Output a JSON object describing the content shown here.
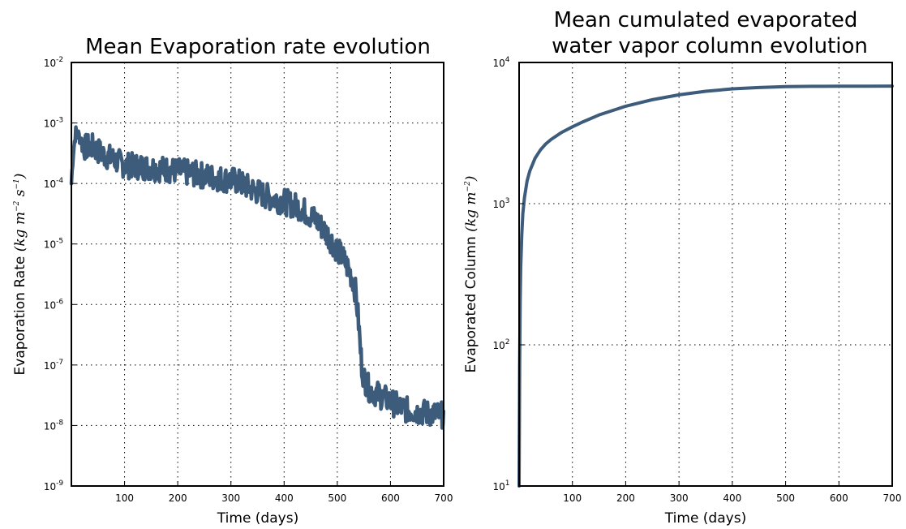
{
  "chart_data": [
    {
      "type": "line",
      "title": "Mean Evaporation rate evolution",
      "xlabel": "Time (days)",
      "ylabel": "Evaporation Rate",
      "ylabel_unit": "kg m-2 s-1",
      "xlim": [
        0,
        700
      ],
      "ylim": [
        1e-09,
        0.01
      ],
      "yscale": "log",
      "grid": true,
      "color": "#3d5c7c",
      "x_ticks": [
        "100",
        "200",
        "300",
        "400",
        "500",
        "600",
        "700"
      ],
      "y_ticks": [
        {
          "base": "10",
          "exp": "-9"
        },
        {
          "base": "10",
          "exp": "-8"
        },
        {
          "base": "10",
          "exp": "-7"
        },
        {
          "base": "10",
          "exp": "-6"
        },
        {
          "base": "10",
          "exp": "-5"
        },
        {
          "base": "10",
          "exp": "-4"
        },
        {
          "base": "10",
          "exp": "-3"
        },
        {
          "base": "10",
          "exp": "-2"
        }
      ],
      "series": [
        {
          "x": [
            0,
            3,
            8,
            15,
            25,
            40,
            60,
            80,
            100,
            130,
            160,
            200,
            240,
            280,
            310,
            340,
            370,
            400,
            430,
            460,
            480,
            500,
            510,
            520,
            530,
            535,
            540,
            543,
            546,
            550,
            555,
            560,
            570,
            590,
            610,
            630,
            650,
            670,
            690,
            700
          ],
          "y": [
            0.0001,
            0.0003,
            0.0007,
            0.0006,
            0.0004,
            0.0004,
            0.0003,
            0.00025,
            0.0002,
            0.00019,
            0.00018,
            0.00016,
            0.00014,
            0.00012,
            0.00011,
            8e-05,
            6e-05,
            5e-05,
            4e-05,
            2.5e-05,
            1.5e-05,
            8e-06,
            6e-06,
            4e-06,
            2.5e-06,
            1.5e-06,
            5e-07,
            2e-07,
            1e-07,
            6e-08,
            5e-08,
            4e-08,
            3.5e-08,
            2.8e-08,
            2.2e-08,
            1.8e-08,
            1.7e-08,
            1.6e-08,
            1.5e-08,
            1.5e-08
          ]
        }
      ]
    },
    {
      "type": "line",
      "title": "Mean cumulated evaporated water vapor column evolution",
      "title_lines": [
        "Mean cumulated evaporated",
        "water vapor column evolution"
      ],
      "xlabel": "Time (days)",
      "ylabel": "Evaporated Column",
      "ylabel_unit": "kg m-2",
      "xlim": [
        0,
        700
      ],
      "ylim": [
        10,
        10000
      ],
      "yscale": "log",
      "grid": true,
      "color": "#3d5c7c",
      "x_ticks": [
        "100",
        "200",
        "300",
        "400",
        "500",
        "600",
        "700"
      ],
      "y_ticks": [
        {
          "base": "10",
          "exp": "1"
        },
        {
          "base": "10",
          "exp": "2"
        },
        {
          "base": "10",
          "exp": "3"
        },
        {
          "base": "10",
          "exp": "4"
        }
      ],
      "series": [
        {
          "x": [
            0,
            1,
            2,
            3,
            5,
            7,
            10,
            15,
            20,
            30,
            40,
            50,
            60,
            80,
            100,
            120,
            150,
            200,
            250,
            300,
            350,
            400,
            450,
            500,
            550,
            600,
            650,
            700
          ],
          "y": [
            10,
            70,
            200,
            350,
            600,
            850,
            1100,
            1450,
            1700,
            2100,
            2400,
            2650,
            2850,
            3200,
            3500,
            3800,
            4250,
            4900,
            5450,
            5900,
            6250,
            6500,
            6650,
            6750,
            6780,
            6790,
            6795,
            6800
          ]
        }
      ]
    }
  ]
}
